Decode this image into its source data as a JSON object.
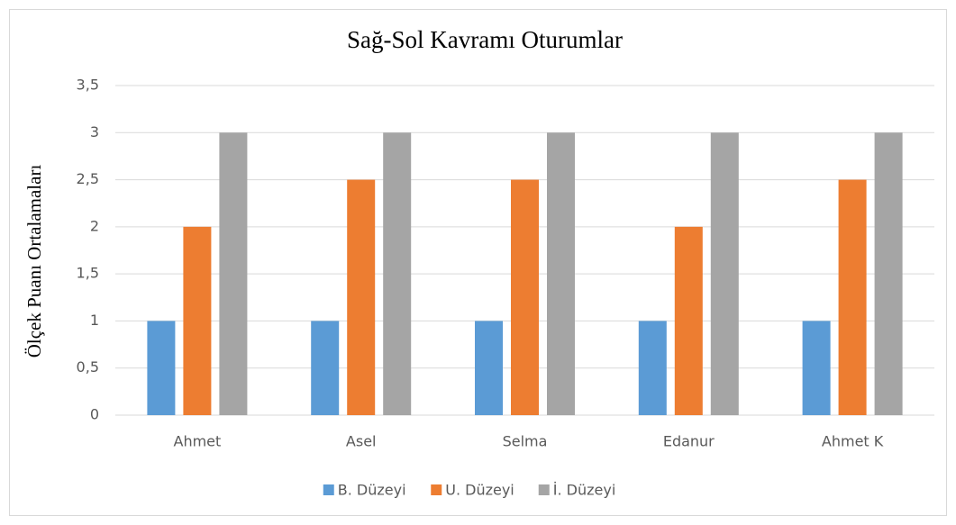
{
  "chart_data": {
    "type": "bar",
    "title": "Sağ-Sol Kavramı Oturumlar",
    "y_label": "Ölçek Puanı Ortalamaları",
    "categories": [
      "Ahmet",
      "Asel",
      "Selma",
      "Edanur",
      "Ahmet K"
    ],
    "series": [
      {
        "name": "B. Düzeyi",
        "color": "#5b9bd5",
        "values": [
          1,
          1,
          1,
          1,
          1
        ]
      },
      {
        "name": "U. Düzeyi",
        "color": "#ed7d31",
        "values": [
          2,
          2.5,
          2.5,
          2,
          2.5
        ]
      },
      {
        "name": "İ. Düzeyi",
        "color": "#a5a5a5",
        "values": [
          3,
          3,
          3,
          3,
          3
        ]
      }
    ],
    "ylim": [
      0,
      3.5
    ],
    "yticks": [
      0,
      {
        "value": 0.5,
        "label": "0,5"
      },
      1,
      {
        "value": 1.5,
        "label": "1,5"
      },
      2,
      {
        "value": 2.5,
        "label": "2,5"
      },
      3,
      {
        "value": 3.5,
        "label": "3,5"
      }
    ],
    "grid": true,
    "legend": "bottom"
  }
}
